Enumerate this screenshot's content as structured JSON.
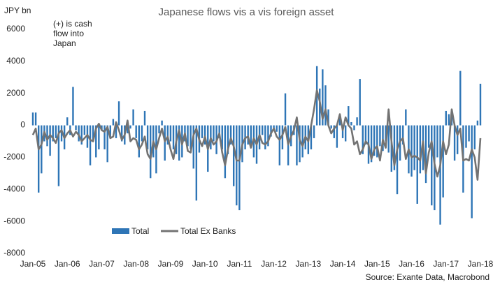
{
  "chart_data": {
    "type": "bar-line",
    "title": "Japanese flows vis a vis foreign asset",
    "y_label": "JPY bn",
    "annotation": "(+) is cash\nflow into\nJapan",
    "source": "Source: Exante Data, Macrobond",
    "categories": [
      "Jan-05",
      null,
      null,
      null,
      null,
      null,
      null,
      null,
      null,
      null,
      null,
      null,
      "Jan-06",
      null,
      null,
      null,
      null,
      null,
      null,
      null,
      null,
      null,
      null,
      null,
      "Jan-07",
      null,
      null,
      null,
      null,
      null,
      null,
      null,
      null,
      null,
      null,
      null,
      "Jan-08",
      null,
      null,
      null,
      null,
      null,
      null,
      null,
      null,
      null,
      null,
      null,
      "Jan-09",
      null,
      null,
      null,
      null,
      null,
      null,
      null,
      null,
      null,
      null,
      null,
      "Jan-10",
      null,
      null,
      null,
      null,
      null,
      null,
      null,
      null,
      null,
      null,
      null,
      "Jan-11",
      null,
      null,
      null,
      null,
      null,
      null,
      null,
      null,
      null,
      null,
      null,
      "Jan-12",
      null,
      null,
      null,
      null,
      null,
      null,
      null,
      null,
      null,
      null,
      null,
      "Jan-13",
      null,
      null,
      null,
      null,
      null,
      null,
      null,
      null,
      null,
      null,
      null,
      "Jan-14",
      null,
      null,
      null,
      null,
      null,
      null,
      null,
      null,
      null,
      null,
      null,
      "Jan-15",
      null,
      null,
      null,
      null,
      null,
      null,
      null,
      null,
      null,
      null,
      null,
      "Jan-16",
      null,
      null,
      null,
      null,
      null,
      null,
      null,
      null,
      null,
      null,
      null,
      "Jan-17",
      null,
      null,
      null,
      null,
      null,
      null,
      null,
      null,
      null,
      null,
      null,
      "Jan-18"
    ],
    "series": [
      {
        "name": "Total",
        "type": "bar",
        "color": "#2e75b6",
        "values": [
          800,
          800,
          -4200,
          -3000,
          -1000,
          -1300,
          -1900,
          -1000,
          -800,
          -3800,
          -1000,
          -1500,
          500,
          -600,
          2400,
          -300,
          -1000,
          -1200,
          -600,
          -1400,
          -2500,
          -1000,
          -2000,
          -1500,
          -300,
          -1500,
          -2300,
          -800,
          400,
          -800,
          1500,
          -1000,
          -1200,
          -500,
          -200,
          1000,
          -800,
          -2000,
          -1000,
          900,
          -1500,
          -3300,
          -2000,
          -3000,
          -500,
          300,
          -2200,
          -1200,
          -1000,
          -1500,
          -1800,
          -2200,
          -2000,
          -1000,
          -1300,
          -1500,
          -2700,
          -4700,
          -1700,
          -800,
          -1200,
          -2900,
          -1500,
          -1000,
          -1800,
          -800,
          -1500,
          -3300,
          -1800,
          -1200,
          -3800,
          -5000,
          -5300,
          -2300,
          -1500,
          -1200,
          -1300,
          -2000,
          -2400,
          -1500,
          -600,
          -1500,
          -1300,
          -700,
          -300,
          -400,
          -2500,
          -1500,
          2000,
          -2500,
          -1300,
          -600,
          -2500,
          -2300,
          -2000,
          -1500,
          -1800,
          -1500,
          -800,
          3700,
          2300,
          3500,
          2500,
          1000,
          -200,
          -800,
          -1400,
          500,
          -800,
          -1000,
          1200,
          200,
          -300,
          500,
          2900,
          -1800,
          -1200,
          -2400,
          -2300,
          -1900,
          -2000,
          -1300,
          -1600,
          -1000,
          -1700,
          -2900,
          -2800,
          -4300,
          -2200,
          -1200,
          1000,
          -3000,
          -3200,
          -2800,
          -4900,
          -3000,
          -2800,
          -3600,
          -1400,
          -5000,
          -5300,
          -2000,
          -6200,
          -4500,
          900,
          700,
          800,
          -2200,
          -1800,
          3400,
          -4200,
          -1400,
          -1000,
          -5800,
          -1500,
          300,
          2600
        ]
      },
      {
        "name": "Total Ex Banks",
        "type": "line",
        "color": "#737373",
        "values": [
          -600,
          -200,
          -1500,
          -1200,
          -400,
          -900,
          -600,
          -800,
          -1100,
          -500,
          -300,
          -800,
          -500,
          -300,
          -700,
          -400,
          -600,
          -1000,
          -800,
          -600,
          -900,
          -1000,
          -200,
          100,
          -300,
          -400,
          -100,
          -800,
          -700,
          200,
          -300,
          -900,
          -600,
          300,
          -1000,
          -800,
          -900,
          -1500,
          -1200,
          -700,
          -1800,
          -2100,
          -1000,
          -1500,
          -800,
          -200,
          -1000,
          -700,
          -1500,
          -2100,
          -1000,
          -300,
          -1200,
          -500,
          -1600,
          -1700,
          -600,
          -200,
          -900,
          -1300,
          -700,
          -1500,
          -800,
          -1200,
          -1000,
          -500,
          -1700,
          -2500,
          -1500,
          -800,
          -1300,
          -2200,
          -2200,
          -1200,
          -800,
          -700,
          -1400,
          -800,
          -1200,
          -600,
          -1100,
          -1200,
          -1000,
          -500,
          -200,
          -700,
          -900,
          -600,
          -100,
          -1200,
          -700,
          -300,
          500,
          -900,
          -1300,
          -700,
          -1000,
          0,
          1000,
          2200,
          1500,
          400,
          1000,
          0,
          -500,
          -200,
          0,
          700,
          -300,
          500,
          0,
          -200,
          -1200,
          -1000,
          -1800,
          -1500,
          -1000,
          -1200,
          -2100,
          -1500,
          -1300,
          -2200,
          -900,
          -1400,
          1000,
          -1000,
          -2500,
          -1500,
          -1000,
          -800,
          -2100,
          -1500,
          -2000,
          -1900,
          -2000,
          -2200,
          -1000,
          -3000,
          -1700,
          -1000,
          -2400,
          -3200,
          -2500,
          -1000,
          -1800,
          -1200,
          1000,
          0,
          -600,
          -200,
          -2200,
          -2100,
          -2200,
          -1500,
          -2000,
          -3400,
          -800
        ]
      }
    ],
    "ylim": [
      -8000,
      6000
    ],
    "yticks": [
      -8000,
      -6000,
      -4000,
      -2000,
      0,
      2000,
      4000,
      6000
    ],
    "grid": false
  }
}
